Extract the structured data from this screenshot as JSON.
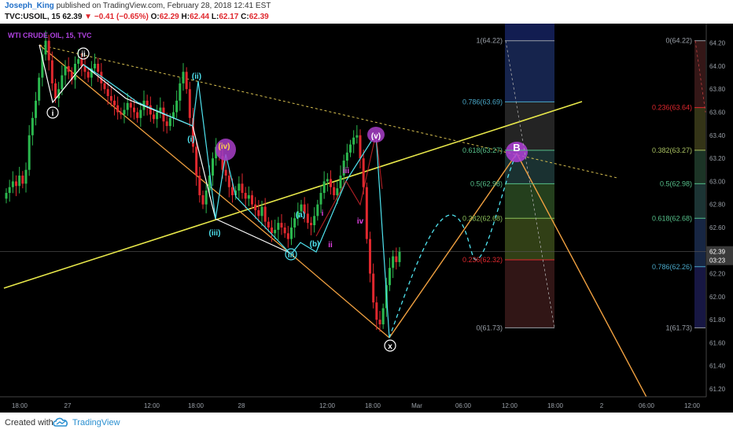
{
  "header": {
    "author": "Joseph_King",
    "published": "published on TradingView.com, February 28, 2018 12:41 EST",
    "symbol": "TVC:USOIL, 15",
    "last": "62.39",
    "change_arrow": "▼",
    "change": "−0.41 (−0.65%)",
    "o_label": "O:",
    "o_value": "62.29",
    "h_label": "H:",
    "h_value": "62.44",
    "l_label": "L:",
    "l_value": "62.17",
    "c_label": "C:",
    "c_value": "62.39"
  },
  "footer": {
    "created_with": "Created with",
    "brand": "TradingView",
    "logo_icon": "tradingview-cloud-icon"
  },
  "chart_data": {
    "type": "candlestick",
    "title": "WTI CRUDE OIL, 15, TVC",
    "colors": {
      "background": "#000000",
      "up": "#2bb84e",
      "down": "#e0282e",
      "title": "#b042e0",
      "axis_text": "#9aa0a8"
    },
    "y_axis": {
      "range": [
        61.2,
        64.3
      ],
      "ticks": [
        "64.20",
        "64.00",
        "63.80",
        "63.60",
        "63.40",
        "63.20",
        "63.00",
        "62.80",
        "62.60",
        "62.40",
        "62.20",
        "62.00",
        "61.80",
        "61.60",
        "61.40",
        "61.20"
      ],
      "last_price_label": "62.39",
      "countdown_label": "03:23"
    },
    "x_axis": {
      "ticks": [
        "18:00",
        "27",
        "12:00",
        "18:00",
        "28",
        "12:00",
        "18:00",
        "Mar",
        "06:00",
        "12:00",
        "18:00",
        "2",
        "06:00",
        "12:00"
      ]
    },
    "candles_close": [
      62.9,
      62.95,
      63.0,
      62.96,
      63.05,
      62.98,
      63.1,
      63.4,
      63.55,
      63.7,
      63.9,
      64.1,
      64.22,
      64.05,
      63.85,
      63.72,
      63.8,
      63.92,
      64.0,
      63.95,
      63.88,
      64.02,
      64.06,
      64.0,
      63.95,
      63.9,
      63.98,
      64.02,
      63.95,
      63.85,
      63.8,
      63.74,
      63.7,
      63.66,
      63.6,
      63.58,
      63.62,
      63.68,
      63.64,
      63.6,
      63.55,
      63.62,
      63.7,
      63.66,
      63.58,
      63.54,
      63.6,
      63.64,
      63.52,
      63.48,
      63.55,
      63.6,
      63.7,
      63.85,
      63.95,
      63.8,
      63.55,
      63.3,
      63.05,
      62.88,
      62.8,
      62.92,
      63.05,
      63.2,
      63.3,
      63.22,
      63.1,
      63.05,
      62.95,
      62.88,
      62.92,
      62.98,
      62.9,
      62.85,
      62.88,
      62.8,
      62.75,
      62.7,
      62.78,
      62.65,
      62.6,
      62.55,
      62.58,
      62.64,
      62.6,
      62.55,
      62.5,
      62.6,
      62.68,
      62.74,
      62.8,
      62.72,
      62.64,
      62.62,
      62.7,
      62.8,
      62.9,
      63.0,
      63.02,
      62.95,
      62.88,
      62.94,
      63.05,
      63.18,
      63.25,
      63.32,
      63.38,
      63.4,
      63.2,
      62.95,
      62.5,
      62.2,
      61.95,
      61.8,
      61.76,
      61.9,
      62.1,
      62.25,
      62.35,
      62.3,
      62.39
    ],
    "elliott_labels": [
      {
        "text": "i",
        "color": "#ffffff"
      },
      {
        "text": "ii",
        "color": "#ffffff"
      },
      {
        "text": "(ii)",
        "color": "#4fe3ef"
      },
      {
        "text": "(i)",
        "color": "#4fe3ef"
      },
      {
        "text": "(iv)",
        "color": "#ffd24a"
      },
      {
        "text": "(iii)",
        "color": "#4fe3ef"
      },
      {
        "text": "(a)",
        "color": "#4fe3ef"
      },
      {
        "text": "(b)",
        "color": "#4fe3ef"
      },
      {
        "text": "iii",
        "color": "#4fe3ef"
      },
      {
        "text": "i",
        "color": "#e040e0"
      },
      {
        "text": "ii",
        "color": "#e040e0"
      },
      {
        "text": "iii",
        "color": "#e040e0"
      },
      {
        "text": "iv",
        "color": "#e040e0"
      },
      {
        "text": "(v)",
        "color": "#ffffff"
      },
      {
        "text": "x",
        "color": "#ffffff"
      },
      {
        "text": "B",
        "color": "#ffffff"
      }
    ],
    "fib_left": [
      {
        "label": "1(64.22)",
        "price": 64.22,
        "color": "#9aa0a8"
      },
      {
        "label": "0.786(63.69)",
        "price": 63.69,
        "color": "#4aa8c8"
      },
      {
        "label": "0.618(63.27)",
        "price": 63.27,
        "color": "#56c08a"
      },
      {
        "label": "0.5(62.98)",
        "price": 62.98,
        "color": "#56c08a"
      },
      {
        "label": "0.382(62.68)",
        "price": 62.68,
        "color": "#8cc05a"
      },
      {
        "label": "0.236(62.32)",
        "price": 62.32,
        "color": "#e0282e"
      },
      {
        "label": "0(61.73)",
        "price": 61.73,
        "color": "#9aa0a8"
      }
    ],
    "fib_right": [
      {
        "label": "0(64.22)",
        "price": 64.22,
        "color": "#9aa0a8"
      },
      {
        "label": "0.236(63.64)",
        "price": 63.64,
        "color": "#e0282e"
      },
      {
        "label": "0.382(63.27)",
        "price": 63.27,
        "color": "#a8c060"
      },
      {
        "label": "0.5(62.98)",
        "price": 62.98,
        "color": "#56c08a"
      },
      {
        "label": "0.618(62.68)",
        "price": 62.68,
        "color": "#56c08a"
      },
      {
        "label": "0.786(62.26)",
        "price": 62.26,
        "color": "#4aa8c8"
      },
      {
        "label": "1(61.73)",
        "price": 61.73,
        "color": "#9aa0a8"
      }
    ]
  }
}
